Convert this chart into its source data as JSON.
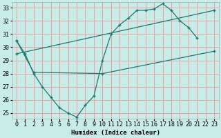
{
  "xlabel": "Humidex (Indice chaleur)",
  "background_color": "#c8ece8",
  "grid_color": "#e8a0a0",
  "line_color": "#1a7a6e",
  "xlim": [
    -0.5,
    23.5
  ],
  "ylim": [
    24.6,
    33.4
  ],
  "xticks": [
    0,
    1,
    2,
    3,
    4,
    5,
    6,
    7,
    8,
    9,
    10,
    11,
    12,
    13,
    14,
    15,
    16,
    17,
    18,
    19,
    20,
    21,
    22,
    23
  ],
  "yticks": [
    25,
    26,
    27,
    28,
    29,
    30,
    31,
    32,
    33
  ],
  "series": [
    {
      "x": [
        0,
        1,
        2,
        3,
        4,
        5,
        6,
        7,
        8,
        9,
        10,
        11,
        12,
        13,
        14,
        15,
        16,
        17,
        18,
        19,
        20,
        21
      ],
      "y": [
        30.5,
        29.5,
        28.0,
        27.0,
        26.2,
        25.4,
        25.0,
        24.7,
        25.6,
        26.3,
        29.0,
        31.0,
        31.7,
        32.2,
        32.8,
        32.8,
        32.9,
        33.3,
        32.8,
        32.0,
        31.5,
        30.7
      ]
    },
    {
      "x": [
        0,
        2,
        10,
        23
      ],
      "y": [
        30.5,
        28.1,
        28.0,
        29.7
      ]
    },
    {
      "x": [
        0,
        23
      ],
      "y": [
        29.5,
        32.8
      ]
    }
  ]
}
